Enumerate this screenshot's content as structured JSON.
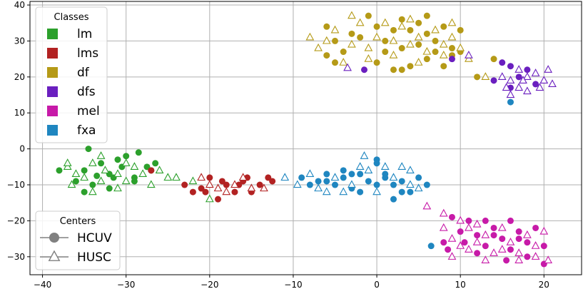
{
  "chart_data": {
    "type": "scatter",
    "title": "",
    "xlabel": "",
    "ylabel": "",
    "xlim": [
      -41.5,
      24.5
    ],
    "ylim": [
      -35,
      41
    ],
    "xticks": [
      -40,
      -30,
      -20,
      -10,
      0,
      10,
      20
    ],
    "yticks": [
      -30,
      -20,
      -10,
      0,
      10,
      20,
      30,
      40
    ],
    "grid": true,
    "legend_classes": {
      "title": "Classes",
      "placement": "top-left",
      "entries": [
        {
          "label": "lm",
          "color": "#2ca02c"
        },
        {
          "label": "lms",
          "color": "#b22222"
        },
        {
          "label": "df",
          "color": "#b59a17"
        },
        {
          "label": "dfs",
          "color": "#6a1fbf"
        },
        {
          "label": "mel",
          "color": "#c71aa8"
        },
        {
          "label": "fxa",
          "color": "#1f86c0"
        }
      ]
    },
    "legend_centers": {
      "title": "Centers",
      "placement": "bottom-left",
      "entries": [
        {
          "label": "HCUV",
          "marker": "circle"
        },
        {
          "label": "HUSC",
          "marker": "triangle"
        }
      ]
    },
    "series": [
      {
        "name": "lm",
        "color": "#2ca02c",
        "marker": "circle",
        "points": [
          [
            -34.5,
            0
          ],
          [
            -30,
            -2
          ],
          [
            -27,
            -6
          ],
          [
            -33,
            -4
          ],
          [
            -35,
            -12
          ],
          [
            -38,
            -6
          ],
          [
            -32,
            -7
          ],
          [
            -29,
            -8
          ],
          [
            -27.5,
            -5
          ],
          [
            -31,
            -3
          ],
          [
            -36,
            -9
          ],
          [
            -33.5,
            -7.5
          ],
          [
            -30.5,
            -5
          ],
          [
            -26.5,
            -4
          ],
          [
            -28.5,
            -1
          ],
          [
            -32,
            -11
          ],
          [
            -34,
            -10
          ],
          [
            -29,
            -9
          ],
          [
            -31.5,
            -8
          ],
          [
            -35,
            -6
          ]
        ]
      },
      {
        "name": "lm",
        "color": "#2ca02c",
        "marker": "triangle",
        "points": [
          [
            -37,
            -5
          ],
          [
            -36,
            -7
          ],
          [
            -34,
            -4
          ],
          [
            -32.5,
            -6
          ],
          [
            -31,
            -7
          ],
          [
            -30,
            -4
          ],
          [
            -29,
            -5
          ],
          [
            -28,
            -7
          ],
          [
            -25,
            -8
          ],
          [
            -24,
            -8
          ],
          [
            -22,
            -9
          ],
          [
            -33,
            -9
          ],
          [
            -35,
            -8
          ],
          [
            -30,
            -9
          ],
          [
            -27,
            -10
          ],
          [
            -37,
            -4
          ],
          [
            -36.5,
            -10
          ],
          [
            -33,
            -2
          ],
          [
            -26,
            -6
          ],
          [
            -20,
            -14
          ],
          [
            -34,
            -12
          ],
          [
            -31,
            -11
          ]
        ]
      },
      {
        "name": "lms",
        "color": "#b22222",
        "marker": "circle",
        "points": [
          [
            -23,
            -10
          ],
          [
            -21,
            -11
          ],
          [
            -20,
            -8
          ],
          [
            -18,
            -10
          ],
          [
            -16,
            -9
          ],
          [
            -15,
            -12
          ],
          [
            -13,
            -8
          ],
          [
            -17,
            -12
          ],
          [
            -19,
            -14
          ],
          [
            -14,
            -10
          ],
          [
            -12.5,
            -9
          ],
          [
            -22,
            -12
          ],
          [
            -27,
            -6
          ],
          [
            -16.5,
            -10
          ],
          [
            -18.5,
            -9
          ],
          [
            -20.5,
            -12
          ],
          [
            -15.5,
            -8
          ]
        ]
      },
      {
        "name": "lms",
        "color": "#b22222",
        "marker": "triangle",
        "points": [
          [
            -21,
            -8
          ],
          [
            -19,
            -11
          ],
          [
            -17,
            -10
          ],
          [
            -15,
            -11
          ],
          [
            -13.5,
            -11
          ],
          [
            -20,
            -10
          ],
          [
            -18,
            -12
          ],
          [
            -16,
            -8
          ]
        ]
      },
      {
        "name": "df",
        "color": "#b59a17",
        "marker": "circle",
        "points": [
          [
            -6,
            34
          ],
          [
            -5,
            30
          ],
          [
            -3,
            32
          ],
          [
            -1,
            37
          ],
          [
            0,
            34
          ],
          [
            1,
            30
          ],
          [
            2,
            33
          ],
          [
            3,
            36
          ],
          [
            4,
            33
          ],
          [
            5,
            35
          ],
          [
            6,
            32
          ],
          [
            7,
            30
          ],
          [
            8,
            34
          ],
          [
            9,
            28
          ],
          [
            -4,
            27
          ],
          [
            -2,
            31
          ],
          [
            1,
            27
          ],
          [
            3,
            28
          ],
          [
            5,
            29
          ],
          [
            7,
            27
          ],
          [
            9,
            26
          ],
          [
            10,
            33
          ],
          [
            2,
            22
          ],
          [
            4,
            23
          ],
          [
            6,
            25
          ],
          [
            8,
            23
          ],
          [
            -6,
            26
          ],
          [
            -5,
            24
          ],
          [
            0,
            24
          ],
          [
            3,
            22
          ],
          [
            12,
            20
          ],
          [
            14,
            25
          ],
          [
            10,
            27
          ],
          [
            6,
            37
          ]
        ]
      },
      {
        "name": "df",
        "color": "#b59a17",
        "marker": "triangle",
        "points": [
          [
            -8,
            31
          ],
          [
            -7,
            28
          ],
          [
            -5,
            33
          ],
          [
            -3,
            29
          ],
          [
            -2,
            35
          ],
          [
            -1,
            28
          ],
          [
            1,
            35
          ],
          [
            2,
            30
          ],
          [
            3,
            34
          ],
          [
            4,
            29
          ],
          [
            5,
            31
          ],
          [
            6,
            27
          ],
          [
            7,
            33
          ],
          [
            8,
            29
          ],
          [
            9,
            31
          ],
          [
            10,
            28
          ],
          [
            -4,
            24
          ],
          [
            -1,
            25
          ],
          [
            2,
            26
          ],
          [
            5,
            24
          ],
          [
            8,
            26
          ],
          [
            -6,
            30
          ],
          [
            0,
            31
          ],
          [
            4,
            36
          ],
          [
            9,
            35
          ],
          [
            13,
            20
          ],
          [
            11,
            25
          ],
          [
            -3,
            37
          ]
        ]
      },
      {
        "name": "dfs",
        "color": "#6a1fbf",
        "marker": "circle",
        "points": [
          [
            14,
            19
          ],
          [
            16,
            23
          ],
          [
            17,
            20
          ],
          [
            18,
            22
          ],
          [
            19,
            18
          ],
          [
            15,
            24
          ],
          [
            16,
            17
          ],
          [
            -1.5,
            22
          ],
          [
            9,
            25
          ]
        ]
      },
      {
        "name": "dfs",
        "color": "#6a1fbf",
        "marker": "triangle",
        "points": [
          [
            15,
            20
          ],
          [
            16,
            19
          ],
          [
            17,
            17
          ],
          [
            18,
            20
          ],
          [
            19,
            21
          ],
          [
            20,
            19
          ],
          [
            20.5,
            22
          ],
          [
            18,
            16
          ],
          [
            17,
            22
          ],
          [
            15.5,
            17
          ],
          [
            19.5,
            17
          ],
          [
            16,
            15
          ],
          [
            -3.5,
            22.5
          ],
          [
            11,
            26
          ],
          [
            21,
            18
          ],
          [
            17.5,
            19
          ]
        ]
      },
      {
        "name": "mel",
        "color": "#c71aa8",
        "marker": "circle",
        "points": [
          [
            8,
            -26
          ],
          [
            10,
            -23
          ],
          [
            12,
            -24
          ],
          [
            13,
            -27
          ],
          [
            14,
            -22
          ],
          [
            15,
            -25
          ],
          [
            16,
            -28
          ],
          [
            17,
            -23
          ],
          [
            18,
            -26
          ],
          [
            19,
            -22
          ],
          [
            20,
            -27
          ],
          [
            9,
            -19
          ],
          [
            11,
            -20
          ],
          [
            13,
            -20
          ],
          [
            16,
            -20
          ],
          [
            8.5,
            -28
          ],
          [
            12,
            -29
          ],
          [
            18,
            -30
          ],
          [
            20,
            -32
          ],
          [
            15.5,
            -31
          ],
          [
            10.5,
            -26
          ],
          [
            14,
            -24
          ],
          [
            17,
            -25
          ]
        ]
      },
      {
        "name": "mel",
        "color": "#c71aa8",
        "marker": "triangle",
        "points": [
          [
            6,
            -16
          ],
          [
            8,
            -22
          ],
          [
            9,
            -25
          ],
          [
            10,
            -27
          ],
          [
            11,
            -22
          ],
          [
            12,
            -26
          ],
          [
            13,
            -24
          ],
          [
            14,
            -29
          ],
          [
            15,
            -22
          ],
          [
            16,
            -26
          ],
          [
            17,
            -29
          ],
          [
            18,
            -24
          ],
          [
            19,
            -27
          ],
          [
            20,
            -23
          ],
          [
            20.5,
            -31
          ],
          [
            9,
            -30
          ],
          [
            11,
            -28
          ],
          [
            13,
            -31
          ],
          [
            17,
            -31
          ],
          [
            8,
            -18
          ],
          [
            10,
            -20
          ],
          [
            19,
            -30
          ],
          [
            15,
            -28
          ],
          [
            12,
            -21
          ]
        ]
      },
      {
        "name": "fxa",
        "color": "#1f86c0",
        "marker": "circle",
        "points": [
          [
            -9,
            -8
          ],
          [
            -7,
            -9
          ],
          [
            -6,
            -7
          ],
          [
            -5,
            -10
          ],
          [
            -4,
            -8
          ],
          [
            -3,
            -11
          ],
          [
            -2,
            -7
          ],
          [
            -1,
            -9
          ],
          [
            0,
            -4
          ],
          [
            1,
            -7
          ],
          [
            2,
            -10
          ],
          [
            3,
            -9
          ],
          [
            4,
            -12
          ],
          [
            5,
            -8
          ],
          [
            -8,
            -10
          ],
          [
            -6,
            -9
          ],
          [
            -4,
            -6
          ],
          [
            -2,
            -12
          ],
          [
            0,
            -10
          ],
          [
            2,
            -14
          ],
          [
            3,
            -12
          ],
          [
            6,
            -10
          ],
          [
            -3,
            -7
          ],
          [
            16,
            13
          ],
          [
            6.5,
            -27
          ],
          [
            0,
            -3
          ],
          [
            1,
            -8
          ]
        ]
      },
      {
        "name": "fxa",
        "color": "#1f86c0",
        "marker": "triangle",
        "points": [
          [
            -11,
            -8
          ],
          [
            -8,
            -7
          ],
          [
            -7,
            -11
          ],
          [
            -5,
            -8
          ],
          [
            -3,
            -10
          ],
          [
            -1,
            -6
          ],
          [
            1,
            -5
          ],
          [
            2,
            -8
          ],
          [
            4,
            -6
          ],
          [
            5,
            -11
          ],
          [
            -6,
            -12
          ],
          [
            -2,
            -5
          ],
          [
            3,
            -5
          ],
          [
            -4,
            -12
          ],
          [
            0,
            -12
          ],
          [
            -1.5,
            -2
          ],
          [
            4,
            -10
          ],
          [
            -9.5,
            -10
          ]
        ]
      }
    ]
  }
}
